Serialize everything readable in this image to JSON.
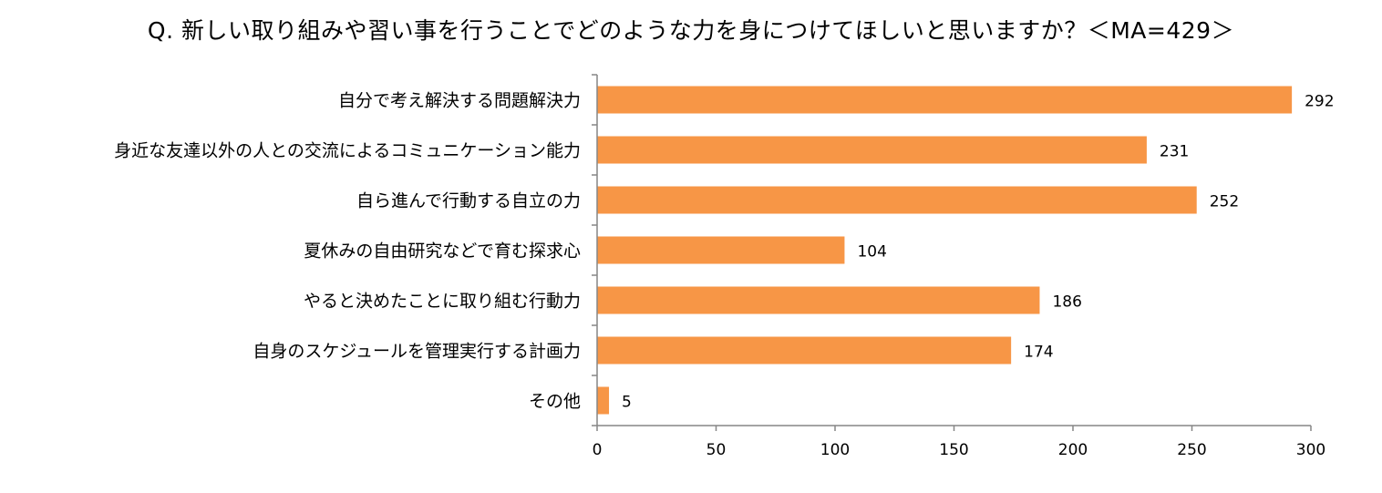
{
  "title": "Q. 新しい取り組みや習い事を行うことでどのような力を身につけてほしいと思いますか？＜MA=429＞",
  "colors": {
    "bar": "#F79646",
    "axis": "#868686"
  },
  "chart_data": {
    "type": "bar",
    "orientation": "horizontal",
    "title": "Q. 新しい取り組みや習い事を行うことでどのような力を身につけてほしいと思いますか？＜MA=429＞",
    "categories": [
      "自分で考え解決する問題解決力",
      "身近な友達以外の人との交流によるコミュニケーション能力",
      "自ら進んで行動する自立の力",
      "夏休みの自由研究などで育む探求心",
      "やると決めたことに取り組む行動力",
      "自身のスケジュールを管理実行する計画力",
      "その他"
    ],
    "values": [
      292,
      231,
      252,
      104,
      186,
      174,
      5
    ],
    "data_labels": [
      "292",
      "231",
      "252",
      "104",
      "186",
      "174",
      "5"
    ],
    "xlim": [
      0,
      300
    ],
    "xticks": [
      0,
      50,
      100,
      150,
      200,
      250,
      300
    ],
    "xtick_labels": [
      "0",
      "50",
      "100",
      "150",
      "200",
      "250",
      "300"
    ],
    "grid": false,
    "legend": "none"
  }
}
